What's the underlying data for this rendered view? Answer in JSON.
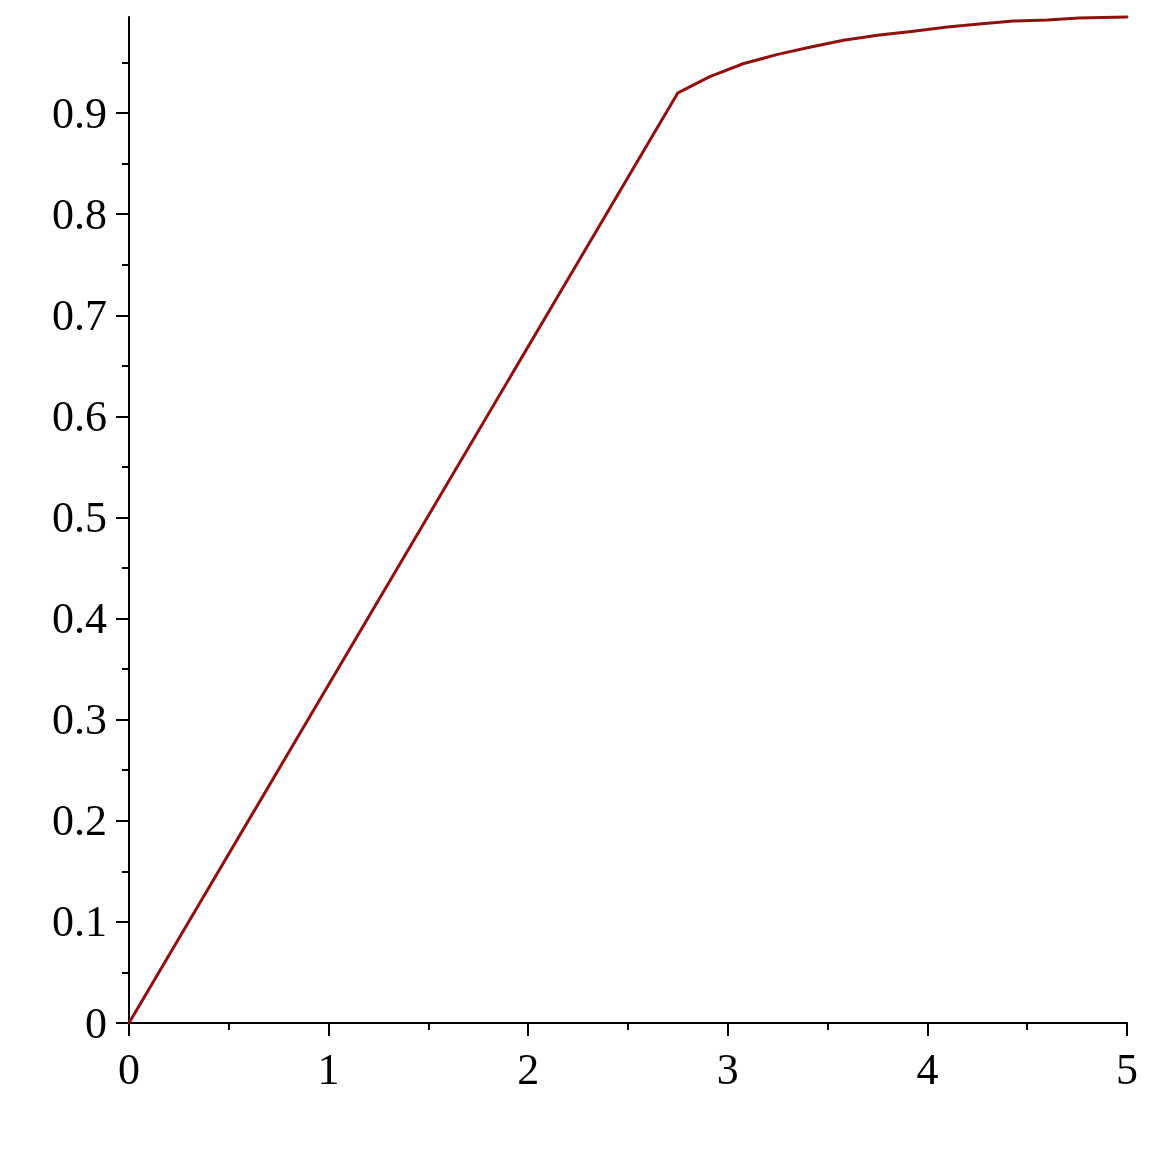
{
  "chart_data": {
    "type": "line",
    "x": [
      0,
      2.75,
      2.91,
      3.08,
      3.25,
      3.41,
      3.58,
      3.75,
      3.93,
      4.1,
      4.26,
      4.43,
      4.6,
      4.76,
      5
    ],
    "values": [
      0,
      0.92,
      0.936,
      0.949,
      0.958,
      0.965,
      0.972,
      0.977,
      0.981,
      0.985,
      0.988,
      0.991,
      0.992,
      0.994,
      0.995
    ],
    "color": "#900f0f",
    "xlim": [
      0,
      5
    ],
    "xticks": [
      0,
      {
        "value": 0.5,
        "label": null
      },
      1,
      {
        "value": 1.5,
        "label": null
      },
      2,
      {
        "value": 2.5,
        "label": null
      },
      3,
      {
        "value": 3.5,
        "label": null
      },
      4,
      {
        "value": 4.5,
        "label": null
      },
      5
    ],
    "ylim": [
      0,
      0.995
    ],
    "yticks": [
      0,
      {
        "value": 0.05,
        "label": null
      },
      0.1,
      {
        "value": 0.15,
        "label": null
      },
      0.2,
      {
        "value": 0.25,
        "label": null
      },
      0.3,
      {
        "value": 0.35,
        "label": null
      },
      0.4,
      {
        "value": 0.45,
        "label": null
      },
      0.5,
      {
        "value": 0.55,
        "label": null
      },
      0.6,
      {
        "value": 0.65,
        "label": null
      },
      0.7,
      {
        "value": 0.75,
        "label": null
      },
      0.8,
      {
        "value": 0.85,
        "label": null
      },
      0.9,
      {
        "value": 0.95,
        "label": null
      }
    ],
    "marker": "none",
    "grid": false
  }
}
